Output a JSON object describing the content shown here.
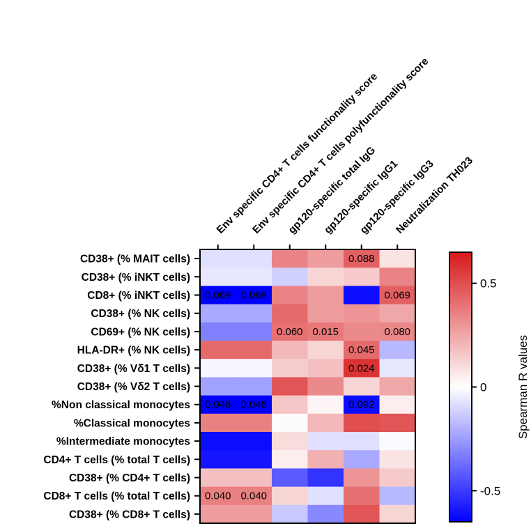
{
  "chart_data": {
    "type": "heatmap",
    "rows": [
      "CD38+ (% MAIT cells)",
      "CD38+ (% iNKT cells)",
      "CD8+ (% iNKT cells)",
      "CD38+ (% NK cells)",
      "CD69+ (% NK cells)",
      "HLA-DR+ (% NK cells)",
      "CD38+ (% Vδ1 T cells)",
      "CD38+ (% Vδ2 T cells)",
      "%Non classical monocytes",
      "%Classical monocytes",
      "%Intermediate monocytes",
      "CD4+ T cells (% total T cells)",
      "CD38+ (% CD4+ T cells)",
      "CD8+ T cells (% total T cells)",
      "CD38+ (% CD8+ T cells)"
    ],
    "columns": [
      "Env specific CD4+ T cells functionality score",
      "Env specific CD4+ T cells polyfunctionality score",
      "gp120-specific total IgG",
      "gp120-specific IgG1",
      "gp120-specific IgG3",
      "Neutralization TH023"
    ],
    "values": [
      [
        -0.08,
        -0.08,
        0.35,
        0.28,
        0.45,
        0.08
      ],
      [
        -0.06,
        -0.06,
        -0.12,
        0.12,
        0.15,
        0.35
      ],
      [
        -0.68,
        -0.68,
        0.35,
        0.28,
        -0.62,
        0.45
      ],
      [
        -0.22,
        -0.22,
        0.42,
        0.28,
        0.3,
        0.25
      ],
      [
        -0.32,
        -0.32,
        0.4,
        0.38,
        0.33,
        0.34
      ],
      [
        0.42,
        0.42,
        0.2,
        0.12,
        0.42,
        -0.18
      ],
      [
        -0.02,
        -0.02,
        0.14,
        0.18,
        0.58,
        -0.06
      ],
      [
        -0.24,
        -0.24,
        0.48,
        0.33,
        0.12,
        0.25
      ],
      [
        -0.7,
        -0.7,
        0.16,
        0.03,
        -0.62,
        0.05
      ],
      [
        0.36,
        0.36,
        0.01,
        0.2,
        0.5,
        0.48
      ],
      [
        -0.62,
        -0.62,
        0.1,
        -0.08,
        -0.08,
        -0.01
      ],
      [
        -0.6,
        -0.6,
        0.05,
        0.22,
        -0.22,
        0.08
      ],
      [
        0.18,
        0.18,
        -0.42,
        -0.52,
        0.3,
        0.15
      ],
      [
        0.36,
        0.36,
        0.12,
        -0.08,
        0.4,
        -0.18
      ],
      [
        0.28,
        0.28,
        -0.14,
        -0.3,
        0.48,
        0.12
      ]
    ],
    "annotations": [
      {
        "row": 0,
        "col": 4,
        "text": "0.088"
      },
      {
        "row": 2,
        "col": 0,
        "text": "0.069"
      },
      {
        "row": 2,
        "col": 1,
        "text": "0.069"
      },
      {
        "row": 2,
        "col": 5,
        "text": "0.069"
      },
      {
        "row": 4,
        "col": 2,
        "text": "0.060"
      },
      {
        "row": 4,
        "col": 3,
        "text": "0.015"
      },
      {
        "row": 4,
        "col": 5,
        "text": "0.080"
      },
      {
        "row": 5,
        "col": 4,
        "text": "0.045"
      },
      {
        "row": 6,
        "col": 4,
        "text": "0.024"
      },
      {
        "row": 8,
        "col": 0,
        "text": "0.048"
      },
      {
        "row": 8,
        "col": 1,
        "text": "0.048"
      },
      {
        "row": 8,
        "col": 4,
        "text": "0.092"
      },
      {
        "row": 13,
        "col": 0,
        "text": "0.040"
      },
      {
        "row": 13,
        "col": 1,
        "text": "0.040"
      }
    ],
    "colorbar": {
      "title": "Spearman R values",
      "min": -0.65,
      "max": 0.65,
      "ticks": [
        0.5,
        0,
        -0.5
      ],
      "tick_labels": [
        "0.5",
        "0",
        "-0.5"
      ],
      "colors": {
        "low": "#0000ff",
        "mid": "#ffffff",
        "high": "#d7191c"
      }
    }
  }
}
